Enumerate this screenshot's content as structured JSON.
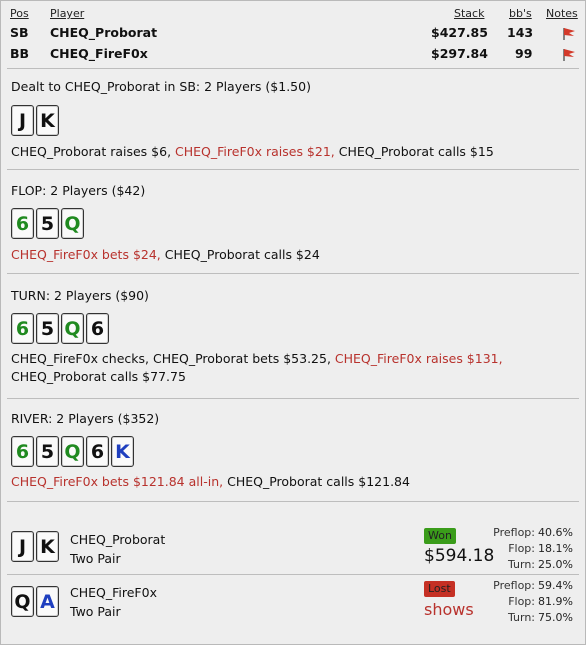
{
  "header": {
    "pos": "Pos",
    "player": "Player",
    "stack": "Stack",
    "bbs": "bb's",
    "notes": "Notes"
  },
  "players": [
    {
      "pos": "SB",
      "name": "CHEQ_Proborat",
      "stack": "$427.85",
      "bbs": "143"
    },
    {
      "pos": "BB",
      "name": "CHEQ_FireF0x",
      "stack": "$297.84",
      "bbs": "99"
    }
  ],
  "preflop": {
    "title": "Dealt to CHEQ_Proborat in SB: 2 Players ($1.50)",
    "cards": [
      {
        "rank": "J",
        "suit": "s"
      },
      {
        "rank": "K",
        "suit": "s"
      }
    ],
    "a1": "CHEQ_Proborat raises $6,",
    "a2": "CHEQ_FireF0x raises $21,",
    "a3": "CHEQ_Proborat calls $15"
  },
  "flop": {
    "title": "FLOP: 2 Players ($42)",
    "cards": [
      {
        "rank": "6",
        "suit": "c"
      },
      {
        "rank": "5",
        "suit": "s"
      },
      {
        "rank": "Q",
        "suit": "c"
      }
    ],
    "a1": "CHEQ_FireF0x bets $24,",
    "a2": "CHEQ_Proborat calls $24"
  },
  "turn": {
    "title": "TURN: 2 Players ($90)",
    "cards": [
      {
        "rank": "6",
        "suit": "c"
      },
      {
        "rank": "5",
        "suit": "s"
      },
      {
        "rank": "Q",
        "suit": "c"
      },
      {
        "rank": "6",
        "suit": "s"
      }
    ],
    "a1": "CHEQ_FireF0x checks, CHEQ_Proborat bets $53.25,",
    "a2": "CHEQ_FireF0x raises $131,",
    "a3": "CHEQ_Proborat calls $77.75"
  },
  "river": {
    "title": "RIVER: 2 Players ($352)",
    "cards": [
      {
        "rank": "6",
        "suit": "c"
      },
      {
        "rank": "5",
        "suit": "s"
      },
      {
        "rank": "Q",
        "suit": "c"
      },
      {
        "rank": "6",
        "suit": "s"
      },
      {
        "rank": "K",
        "suit": "d"
      }
    ],
    "a1": "CHEQ_FireF0x bets $121.84 all-in,",
    "a2": "CHEQ_Proborat calls $121.84"
  },
  "summary": [
    {
      "name": "CHEQ_Proborat",
      "hand": "Two Pair",
      "result": "Won",
      "amount": "$594.18",
      "cards": [
        {
          "rank": "J",
          "suit": "s"
        },
        {
          "rank": "K",
          "suit": "s"
        }
      ],
      "stats": [
        {
          "label": "Preflop:",
          "value": "40.6%"
        },
        {
          "label": "Flop:",
          "value": "18.1%"
        },
        {
          "label": "Turn:",
          "value": "25.0%"
        }
      ]
    },
    {
      "name": "CHEQ_FireF0x",
      "hand": "Two Pair",
      "result": "Lost",
      "amount": "shows",
      "cards": [
        {
          "rank": "Q",
          "suit": "s"
        },
        {
          "rank": "A",
          "suit": "d"
        }
      ],
      "stats": [
        {
          "label": "Preflop:",
          "value": "59.4%"
        },
        {
          "label": "Flop:",
          "value": "81.9%"
        },
        {
          "label": "Turn:",
          "value": "75.0%"
        }
      ]
    }
  ],
  "colors": {
    "clubs": "#208a20",
    "spades": "#111111",
    "diamonds": "#1f3fbf",
    "action_red": "#b8322d",
    "won": "#3a9c1a",
    "lost": "#c53024"
  }
}
